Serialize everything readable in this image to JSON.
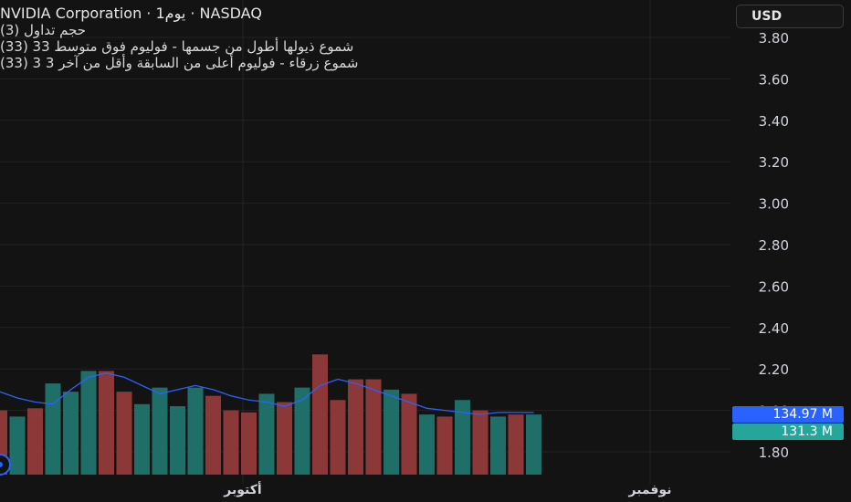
{
  "legend": {
    "title": "NVIDIA Corporation · 1يوم · NASDAQ",
    "line1": "(3) حجم تداول",
    "line2": "(33) 33 شموع ذيولها أطول من جسمها - فوليوم فوق متوسط",
    "line3": "(33) 3 شموع زرقاء - فوليوم أعلى من السابقة وأقل من آخر 3"
  },
  "currency_button": "USD",
  "price_tags": {
    "blue": "134.97 M",
    "teal": "131.3 M"
  },
  "colors": {
    "background": "#131313",
    "up": "#26a69a",
    "down": "#ef5350",
    "ma_line": "#2962ff",
    "grid": "#232323"
  },
  "chart_data": {
    "type": "bar",
    "y_axis": {
      "ticks": [
        "3.80",
        "3.60",
        "3.40",
        "3.20",
        "3.00",
        "2.80",
        "2.60",
        "2.40",
        "2.20",
        "2.00",
        "1.80"
      ],
      "ylim": [
        1.7,
        3.9
      ],
      "position": "right"
    },
    "x_axis": {
      "tick_labels": [
        "أكتوبر",
        "نوفمبر"
      ]
    },
    "volume_bars": {
      "directions": [
        "down",
        "up",
        "down",
        "up",
        "up",
        "up",
        "down",
        "down",
        "up",
        "up",
        "up",
        "up",
        "down",
        "down",
        "down",
        "up",
        "down",
        "up",
        "down",
        "down",
        "down",
        "down",
        "up",
        "down",
        "up",
        "down",
        "up",
        "down",
        "up",
        "down",
        "up"
      ],
      "values": [
        2.0,
        1.97,
        2.01,
        2.13,
        2.09,
        2.19,
        2.19,
        2.09,
        2.03,
        2.11,
        2.02,
        2.11,
        2.07,
        2.0,
        1.99,
        2.08,
        2.04,
        2.11,
        2.27,
        2.05,
        2.15,
        2.15,
        2.1,
        2.08,
        1.98,
        1.97,
        2.05,
        2.0,
        1.97,
        1.98,
        1.98
      ]
    },
    "ma_line": {
      "values": [
        2.09,
        2.06,
        2.04,
        2.03,
        2.1,
        2.16,
        2.18,
        2.16,
        2.12,
        2.08,
        2.1,
        2.12,
        2.1,
        2.07,
        2.05,
        2.04,
        2.02,
        2.05,
        2.12,
        2.15,
        2.13,
        2.1,
        2.07,
        2.04,
        2.01,
        2.0,
        1.99,
        1.98,
        1.99,
        1.99,
        1.99
      ]
    }
  }
}
